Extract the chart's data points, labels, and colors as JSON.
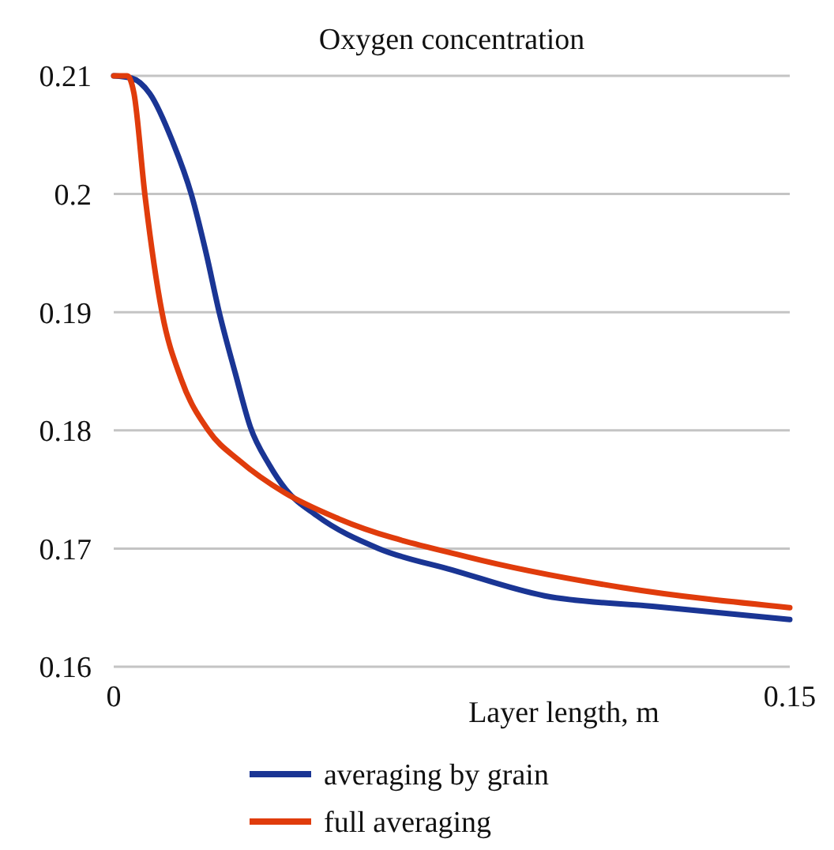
{
  "chart_data": {
    "type": "line",
    "title": "Oxygen concentration",
    "xlabel": "Layer length, m",
    "xlim": [
      0,
      0.15
    ],
    "xticks": [
      0,
      0.15
    ],
    "ylim": [
      0.16,
      0.21
    ],
    "yticks": [
      0.16,
      0.17,
      0.18,
      0.19,
      0.2,
      0.21
    ],
    "grid": "y",
    "legend": "bottom",
    "marker": "none",
    "line_style": "solid",
    "series": [
      {
        "name": "averaging by grain",
        "color": "#1a3594",
        "x": [
          0,
          0.004,
          0.008,
          0.0131,
          0.0172,
          0.0205,
          0.0234,
          0.027,
          0.0303,
          0.0345,
          0.0382,
          0.045,
          0.0588,
          0.075,
          0.0956,
          0.12,
          0.15
        ],
        "values": [
          0.21,
          0.2098,
          0.2085,
          0.2044,
          0.2,
          0.195,
          0.19,
          0.1848,
          0.1803,
          0.1771,
          0.175,
          0.1728,
          0.17,
          0.1682,
          0.166,
          0.1651,
          0.164
        ]
      },
      {
        "name": "full averaging",
        "color": "#e03c0c",
        "x": [
          0,
          0.003,
          0.0045,
          0.0069,
          0.0107,
          0.015,
          0.021,
          0.028,
          0.038,
          0.05,
          0.0784,
          0.1128,
          0.15
        ],
        "values": [
          0.21,
          0.21,
          0.2085,
          0.2,
          0.19,
          0.1843,
          0.18,
          0.1774,
          0.1747,
          0.1725,
          0.1693,
          0.1667,
          0.165
        ]
      }
    ]
  }
}
